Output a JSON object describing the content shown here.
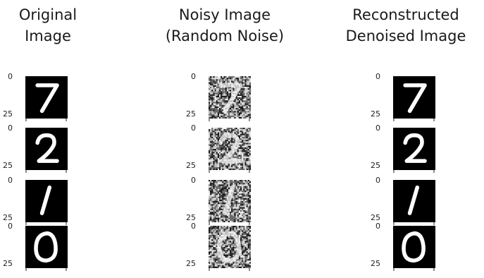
{
  "columns": [
    {
      "title_line1": "Original",
      "title_line2": "Image",
      "kind": "clean"
    },
    {
      "title_line1": "Noisy Image",
      "title_line2": "(Random Noise)",
      "kind": "noisy"
    },
    {
      "title_line1": "Reconstructed",
      "title_line2": "Denoised Image",
      "kind": "clean"
    }
  ],
  "rows": [
    {
      "digit": "7"
    },
    {
      "digit": "2"
    },
    {
      "digit": "1"
    },
    {
      "digit": "0"
    }
  ],
  "axis": {
    "tick_top": "0",
    "tick_bottom": "25"
  }
}
